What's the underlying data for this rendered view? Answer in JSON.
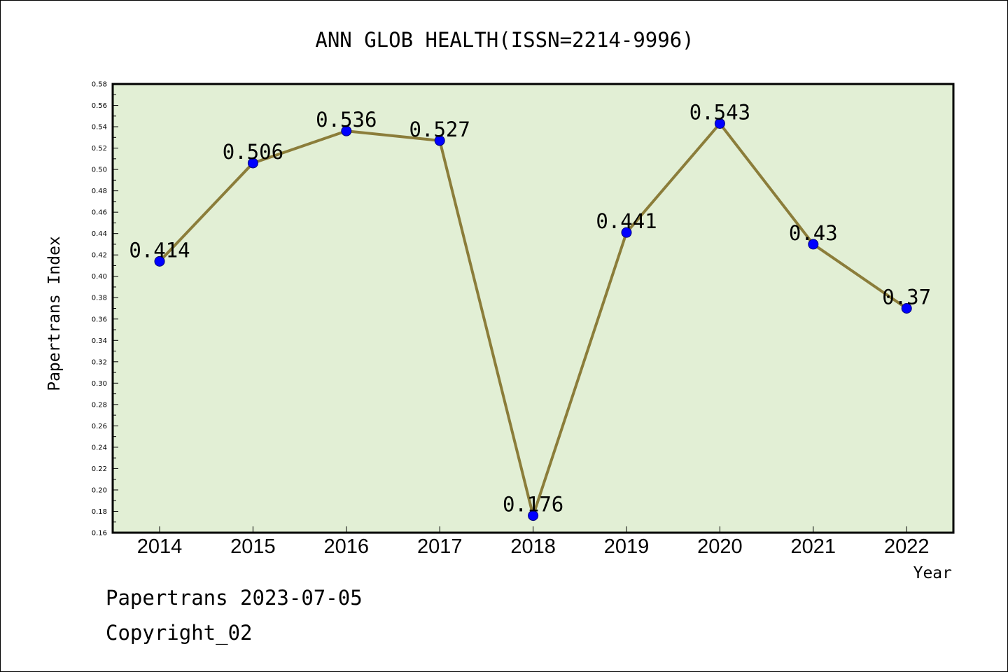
{
  "chart_data": {
    "type": "line",
    "title": "ANN GLOB HEALTH(ISSN=2214-9996)",
    "xlabel": "Year",
    "ylabel": "Papertrans Index",
    "categories": [
      "2014",
      "2015",
      "2016",
      "2017",
      "2018",
      "2019",
      "2020",
      "2021",
      "2022"
    ],
    "values": [
      0.414,
      0.506,
      0.536,
      0.527,
      0.176,
      0.441,
      0.543,
      0.43,
      0.37
    ],
    "value_labels": [
      "0.414",
      "0.506",
      "0.536",
      "0.527",
      "0.176",
      "0.441",
      "0.543",
      "0.43",
      "0.37"
    ],
    "ylim": [
      0.16,
      0.58
    ],
    "yticks": [
      "0.16",
      "0.18",
      "0.20",
      "0.22",
      "0.24",
      "0.26",
      "0.28",
      "0.30",
      "0.32",
      "0.34",
      "0.36",
      "0.38",
      "0.40",
      "0.42",
      "0.44",
      "0.46",
      "0.48",
      "0.50",
      "0.52",
      "0.54",
      "0.56",
      "0.58"
    ],
    "grid": false,
    "colors": {
      "plot_background": "#e2efd5",
      "line": "#8b7d3a",
      "marker": "#0000ff"
    }
  },
  "footer": {
    "line1": "Papertrans 2023-07-05",
    "line2": "Copyright_02"
  }
}
